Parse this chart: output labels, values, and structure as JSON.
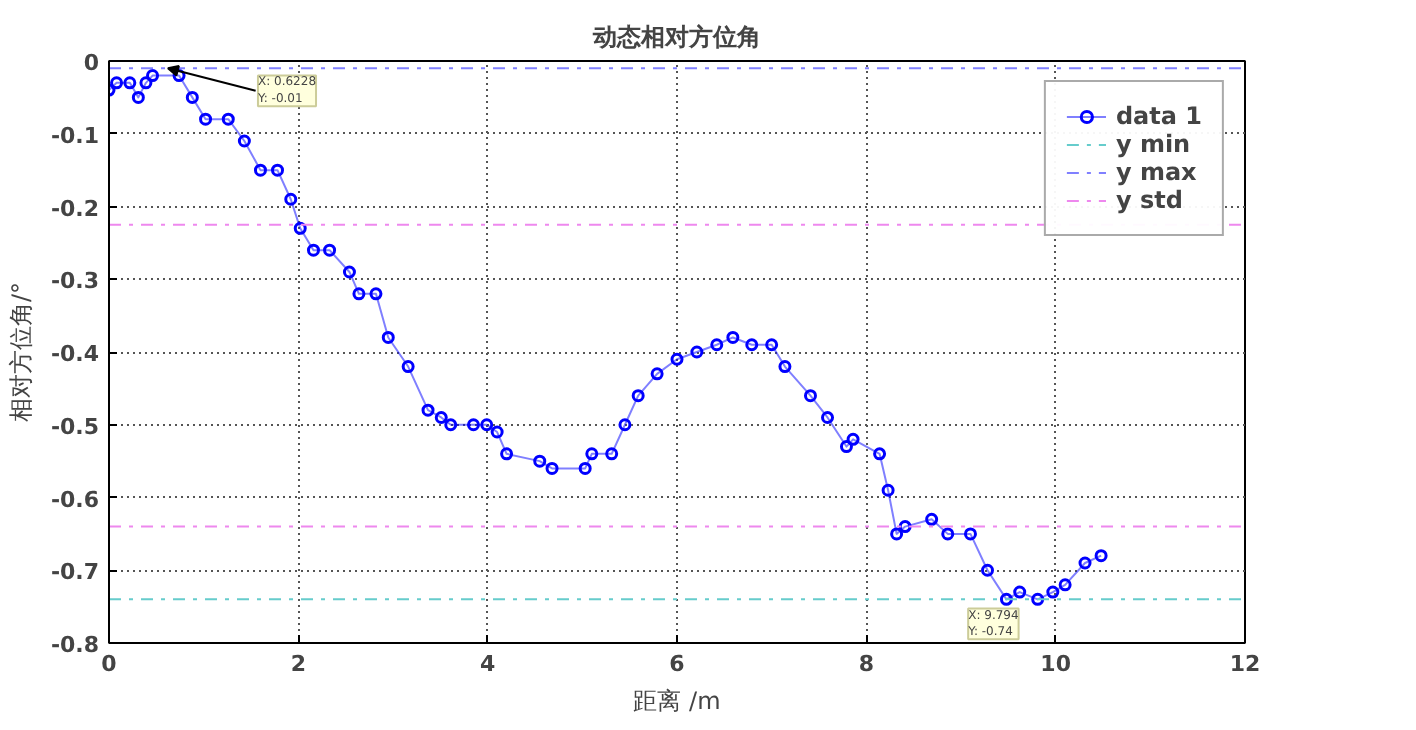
{
  "chart_data": {
    "type": "line",
    "title": "动态相对方位角",
    "xlabel": "距离 /m",
    "ylabel": "相对方位角/°",
    "x": [
      0,
      0.08,
      0.22,
      0.31,
      0.39,
      0.46,
      0.74,
      0.88,
      1.02,
      1.26,
      1.43,
      1.6,
      1.78,
      1.92,
      2.02,
      2.16,
      2.33,
      2.54,
      2.64,
      2.82,
      2.95,
      3.16,
      3.37,
      3.51,
      3.61,
      3.85,
      3.99,
      4.1,
      4.2,
      4.55,
      4.68,
      5.03,
      5.1,
      5.31,
      5.45,
      5.59,
      5.79,
      6.0,
      6.21,
      6.42,
      6.59,
      6.79,
      7.0,
      7.14,
      7.41,
      7.59,
      7.79,
      7.86,
      8.14,
      8.23,
      8.32,
      8.41,
      8.69,
      8.86,
      9.1,
      9.28,
      9.48,
      9.62,
      9.81,
      9.97,
      10.1,
      10.31,
      10.48
    ],
    "series": [
      {
        "name": "data 1",
        "color": "#0000ff",
        "values": [
          -0.04,
          -0.03,
          -0.03,
          -0.05,
          -0.03,
          -0.02,
          -0.02,
          -0.05,
          -0.08,
          -0.08,
          -0.11,
          -0.15,
          -0.15,
          -0.19,
          -0.23,
          -0.26,
          -0.26,
          -0.29,
          -0.32,
          -0.32,
          -0.38,
          -0.42,
          -0.48,
          -0.49,
          -0.5,
          -0.5,
          -0.5,
          -0.51,
          -0.54,
          -0.55,
          -0.56,
          -0.56,
          -0.54,
          -0.54,
          -0.5,
          -0.46,
          -0.43,
          -0.41,
          -0.4,
          -0.39,
          -0.38,
          -0.39,
          -0.39,
          -0.42,
          -0.46,
          -0.49,
          -0.53,
          -0.52,
          -0.54,
          -0.59,
          -0.65,
          -0.64,
          -0.63,
          -0.65,
          -0.65,
          -0.7,
          -0.74,
          -0.73,
          -0.74,
          -0.73,
          -0.72,
          -0.69,
          -0.68
        ]
      }
    ],
    "ref_lines": [
      {
        "axis": "y",
        "value": -0.74,
        "label": "y min",
        "color": "#66cccc",
        "line_style": "dashed"
      },
      {
        "axis": "y",
        "value": -0.01,
        "label": "y max",
        "color": "#8080ff",
        "line_style": "dashed"
      },
      {
        "axis": "y",
        "value": -0.225,
        "label": "y std",
        "color": "#ee88ee",
        "line_style": "dashed"
      },
      {
        "axis": "y",
        "value": -0.64,
        "color": "#ee88ee",
        "line_style": "dashed"
      }
    ],
    "annotations": [
      {
        "text": "X: 0.6228\nY: -0.01",
        "x": 0.6228,
        "y": -0.01
      },
      {
        "text": "X: 9.794\nY: -0.74",
        "x": 9.794,
        "y": -0.74
      }
    ],
    "xlim": [
      0,
      12
    ],
    "ylim": [
      -0.8,
      0
    ],
    "xticks": [
      0,
      2,
      4,
      6,
      8,
      10,
      12
    ],
    "yticks": [
      {
        "value": -0.8,
        "label": "-0.8"
      },
      {
        "value": -0.7,
        "label": "-0.7"
      },
      {
        "value": -0.6,
        "label": "-0.6"
      },
      {
        "value": -0.5,
        "label": "-0.5"
      },
      {
        "value": -0.4,
        "label": "-0.4"
      },
      {
        "value": -0.3,
        "label": "-0.3"
      },
      {
        "value": -0.2,
        "label": "-0.2"
      },
      {
        "value": -0.1,
        "label": "-0.1"
      },
      0
    ],
    "grid": true,
    "legend": "top right",
    "marker": "circle",
    "line_style": "solid"
  }
}
